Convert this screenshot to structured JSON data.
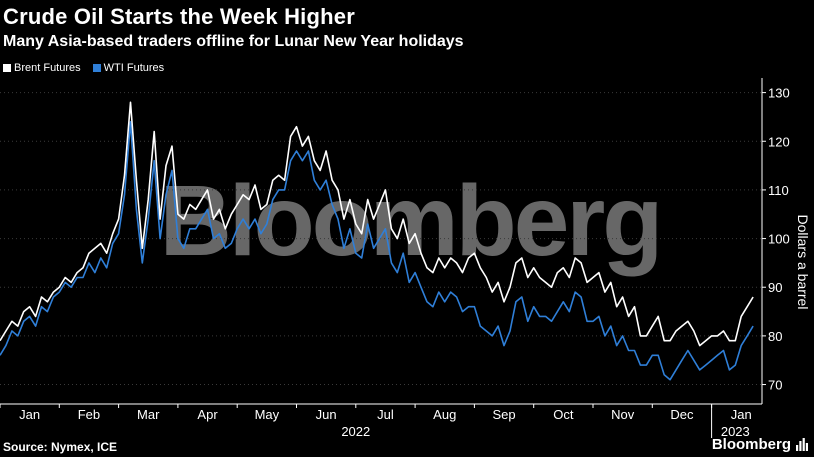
{
  "header": {
    "title": "Crude Oil Starts the Week Higher",
    "subtitle": "Many Asia-based traders offline for Lunar New Year holidays"
  },
  "footer": {
    "source": "Source: Nymex, ICE",
    "brand": "Bloomberg",
    "watermark": "Bloomberg",
    "brand_icon": "bar-chart-icon"
  },
  "colors": {
    "background": "#000000",
    "brent": "#ffffff",
    "wti": "#2f7fd8",
    "grid": "#3a3a3a",
    "watermark": "#7a7a7a"
  },
  "chart_data": {
    "type": "line",
    "title": "Crude Oil Starts the Week Higher",
    "subtitle": "Many Asia-based traders offline for Lunar New Year holidays",
    "xlabel": "",
    "ylabel": "Dollars a barrel",
    "ylim": [
      66,
      133
    ],
    "yticks": [
      70,
      80,
      90,
      100,
      110,
      120,
      130
    ],
    "y_axis_side": "right",
    "grid": "horizontal dotted",
    "legend_position": "top-left",
    "x_range": [
      0,
      12.85
    ],
    "x_tick_labels": [
      "Jan",
      "Feb",
      "Mar",
      "Apr",
      "May",
      "Jun",
      "Jul",
      "Aug",
      "Sep",
      "Oct",
      "Nov",
      "Dec",
      "Jan"
    ],
    "x_year_labels": [
      "2022",
      "2023"
    ],
    "series": [
      {
        "name": "Brent Futures",
        "color": "#ffffff",
        "x": [
          0.0,
          0.1,
          0.2,
          0.3,
          0.4,
          0.5,
          0.6,
          0.7,
          0.8,
          0.9,
          1.0,
          1.1,
          1.2,
          1.3,
          1.4,
          1.5,
          1.6,
          1.7,
          1.8,
          1.9,
          2.0,
          2.1,
          2.2,
          2.3,
          2.4,
          2.5,
          2.6,
          2.7,
          2.8,
          2.9,
          3.0,
          3.1,
          3.2,
          3.3,
          3.4,
          3.5,
          3.6,
          3.7,
          3.8,
          3.9,
          4.0,
          4.1,
          4.2,
          4.3,
          4.4,
          4.5,
          4.6,
          4.7,
          4.8,
          4.9,
          5.0,
          5.1,
          5.2,
          5.3,
          5.4,
          5.5,
          5.6,
          5.7,
          5.8,
          5.9,
          6.0,
          6.1,
          6.2,
          6.3,
          6.4,
          6.5,
          6.6,
          6.7,
          6.8,
          6.9,
          7.0,
          7.1,
          7.2,
          7.3,
          7.4,
          7.5,
          7.6,
          7.7,
          7.8,
          7.9,
          8.0,
          8.1,
          8.2,
          8.3,
          8.4,
          8.5,
          8.6,
          8.7,
          8.8,
          8.9,
          9.0,
          9.1,
          9.2,
          9.3,
          9.4,
          9.5,
          9.6,
          9.7,
          9.8,
          9.9,
          10.0,
          10.1,
          10.2,
          10.3,
          10.4,
          10.5,
          10.6,
          10.7,
          10.8,
          10.9,
          11.0,
          11.1,
          11.2,
          11.3,
          11.4,
          11.5,
          11.6,
          11.7,
          11.8,
          11.9,
          12.0,
          12.1,
          12.2,
          12.3,
          12.4,
          12.5,
          12.6,
          12.7
        ],
        "values": [
          79,
          81,
          83,
          82,
          85,
          86,
          84,
          88,
          87,
          89,
          90,
          92,
          91,
          93,
          94,
          97,
          98,
          99,
          97,
          101,
          104,
          113,
          128,
          112,
          98,
          108,
          122,
          104,
          115,
          119,
          105,
          104,
          107,
          106,
          108,
          110,
          104,
          106,
          102,
          105,
          107,
          109,
          108,
          111,
          106,
          107,
          112,
          113,
          112,
          121,
          123,
          119,
          121,
          116,
          114,
          118,
          112,
          110,
          104,
          108,
          103,
          101,
          108,
          104,
          107,
          110,
          102,
          100,
          104,
          99,
          101,
          97,
          94,
          93,
          96,
          94,
          96,
          95,
          93,
          96,
          97,
          94,
          92,
          89,
          91,
          87,
          90,
          95,
          96,
          92,
          94,
          92,
          91,
          90,
          93,
          94,
          92,
          96,
          95,
          91,
          92,
          93,
          89,
          91,
          86,
          88,
          84,
          86,
          80,
          80,
          82,
          84,
          79,
          79,
          81,
          82,
          83,
          81,
          78,
          79,
          80,
          80,
          81,
          79,
          79,
          84,
          86,
          88
        ]
      },
      {
        "name": "WTI Futures",
        "color": "#2f7fd8",
        "x": [
          0.0,
          0.1,
          0.2,
          0.3,
          0.4,
          0.5,
          0.6,
          0.7,
          0.8,
          0.9,
          1.0,
          1.1,
          1.2,
          1.3,
          1.4,
          1.5,
          1.6,
          1.7,
          1.8,
          1.9,
          2.0,
          2.1,
          2.2,
          2.3,
          2.4,
          2.5,
          2.6,
          2.7,
          2.8,
          2.9,
          3.0,
          3.1,
          3.2,
          3.3,
          3.4,
          3.5,
          3.6,
          3.7,
          3.8,
          3.9,
          4.0,
          4.1,
          4.2,
          4.3,
          4.4,
          4.5,
          4.6,
          4.7,
          4.8,
          4.9,
          5.0,
          5.1,
          5.2,
          5.3,
          5.4,
          5.5,
          5.6,
          5.7,
          5.8,
          5.9,
          6.0,
          6.1,
          6.2,
          6.3,
          6.4,
          6.5,
          6.6,
          6.7,
          6.8,
          6.9,
          7.0,
          7.1,
          7.2,
          7.3,
          7.4,
          7.5,
          7.6,
          7.7,
          7.8,
          7.9,
          8.0,
          8.1,
          8.2,
          8.3,
          8.4,
          8.5,
          8.6,
          8.7,
          8.8,
          8.9,
          9.0,
          9.1,
          9.2,
          9.3,
          9.4,
          9.5,
          9.6,
          9.7,
          9.8,
          9.9,
          10.0,
          10.1,
          10.2,
          10.3,
          10.4,
          10.5,
          10.6,
          10.7,
          10.8,
          10.9,
          11.0,
          11.1,
          11.2,
          11.3,
          11.4,
          11.5,
          11.6,
          11.7,
          11.8,
          11.9,
          12.0,
          12.1,
          12.2,
          12.3,
          12.4,
          12.5,
          12.6,
          12.7
        ],
        "values": [
          76,
          78,
          81,
          80,
          83,
          84,
          82,
          86,
          85,
          88,
          89,
          91,
          90,
          92,
          92,
          95,
          93,
          96,
          94,
          99,
          101,
          109,
          124,
          106,
          95,
          104,
          116,
          100,
          109,
          114,
          100,
          98,
          102,
          102,
          104,
          106,
          100,
          101,
          98,
          99,
          102,
          104,
          102,
          104,
          101,
          103,
          108,
          110,
          110,
          116,
          118,
          116,
          118,
          112,
          110,
          112,
          107,
          104,
          98,
          102,
          97,
          96,
          103,
          98,
          100,
          102,
          95,
          93,
          97,
          91,
          93,
          90,
          87,
          86,
          89,
          87,
          89,
          88,
          85,
          86,
          86,
          82,
          81,
          80,
          82,
          78,
          81,
          87,
          88,
          83,
          86,
          84,
          84,
          83,
          85,
          87,
          85,
          89,
          88,
          83,
          83,
          84,
          80,
          82,
          78,
          80,
          77,
          77,
          74,
          74,
          76,
          76,
          72,
          71,
          73,
          75,
          77,
          75,
          73,
          74,
          75,
          76,
          77,
          73,
          74,
          78,
          80,
          82
        ]
      }
    ]
  }
}
